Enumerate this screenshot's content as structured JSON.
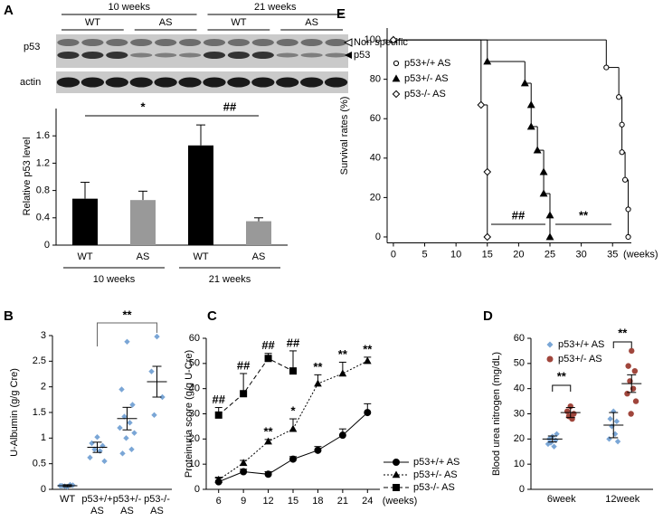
{
  "chart_data": [
    {
      "panel": "A",
      "type": "bar",
      "blot": {
        "groups": [
          "10 weeks",
          "21 weeks"
        ],
        "lanes": [
          "WT",
          "AS",
          "WT",
          "AS"
        ],
        "rows": [
          "p53",
          "actin"
        ],
        "markers": [
          "Non specific",
          "p53"
        ]
      },
      "ylabel": "Relative p53 level",
      "categories": [
        "WT",
        "AS",
        "WT",
        "AS"
      ],
      "groups": [
        "10 weeks",
        "21 weeks"
      ],
      "values": [
        0.68,
        0.66,
        1.46,
        0.35
      ],
      "errors": [
        0.24,
        0.13,
        0.3,
        0.05
      ],
      "colors": [
        "#000000",
        "#999999",
        "#000000",
        "#999999"
      ],
      "ylim": [
        0,
        2
      ],
      "yticks": [
        0,
        0.4,
        0.8,
        1.2,
        1.6
      ],
      "annotations": [
        "*",
        "##"
      ]
    },
    {
      "panel": "B",
      "type": "dotplot",
      "ylabel": "U-Albumin (g/g Cre)",
      "categories": [
        [
          "WT"
        ],
        [
          "p53+/+",
          "AS"
        ],
        [
          "p53+/-",
          "AS"
        ],
        [
          "p53-/-",
          "AS"
        ]
      ],
      "series": [
        {
          "color": "#7aa6d6",
          "marker": "diamond",
          "points": [
            [
              0.05,
              0.07,
              0.08,
              0.06,
              0.09,
              0.07
            ],
            [
              1.02,
              0.9,
              0.85,
              0.78,
              0.75,
              0.62,
              0.55
            ],
            [
              2.88,
              1.95,
              1.65,
              1.42,
              1.3,
              1.2,
              1.1,
              1.0,
              0.78,
              0.7
            ],
            [
              2.98,
              2.3,
              1.8,
              1.45
            ]
          ],
          "means": [
            0.07,
            0.82,
            1.38,
            2.1
          ],
          "sems": [
            0.02,
            0.1,
            0.22,
            0.3
          ]
        }
      ],
      "ylim": [
        0,
        3
      ],
      "yticks": [
        0,
        0.5,
        1,
        1.5,
        2,
        2.5,
        3
      ],
      "annotations": [
        "**"
      ]
    },
    {
      "panel": "C",
      "type": "line",
      "ylabel": "Proteinuria score (g/g U-Cre)",
      "xlabel": "(weeks)",
      "x": [
        6,
        9,
        12,
        15,
        18,
        21,
        24
      ],
      "xlim": [
        4.5,
        25.5
      ],
      "xticks": [
        6,
        9,
        12,
        15,
        18,
        21,
        24
      ],
      "ylim": [
        0,
        60
      ],
      "yticks": [
        0,
        10,
        20,
        30,
        40,
        50,
        60
      ],
      "series": [
        {
          "name": "p53+/+ AS",
          "color": "#000000",
          "marker": "circle",
          "dash": "solid",
          "values": [
            3.0,
            7,
            6,
            12,
            15.5,
            21.5,
            30.5
          ],
          "errors": [
            1.5,
            1,
            1,
            1,
            1.5,
            2.5,
            3.5
          ]
        },
        {
          "name": "p53+/- AS",
          "color": "#000000",
          "marker": "triangle",
          "dash": "dotted",
          "values": [
            3.8,
            10.5,
            19,
            24,
            42,
            46,
            51
          ],
          "errors": [
            1,
            1,
            0.8,
            4,
            3.5,
            4.5,
            1.5
          ]
        },
        {
          "name": "p53-/- AS",
          "color": "#000000",
          "marker": "square",
          "dash": "dashed",
          "values": [
            29.5,
            38,
            52,
            47,
            null,
            null,
            null
          ],
          "errors": [
            3,
            8,
            2,
            8,
            null,
            null,
            null
          ]
        }
      ],
      "annotations": [
        "##",
        "##",
        "##",
        "##",
        "**",
        "*",
        "**",
        "**",
        "**"
      ]
    },
    {
      "panel": "D",
      "type": "dotplot",
      "ylabel": "Blood urea nitrogen (mg/dL)",
      "categories": [
        [
          "6week"
        ],
        [
          "12week"
        ]
      ],
      "series": [
        {
          "name": "p53+/+ AS",
          "color": "#7aa6d6",
          "marker": "diamond",
          "points": [
            [
              21,
              20,
              19.5,
              18.5,
              17,
              18,
              22
            ],
            [
              31,
              28,
              27,
              25,
              22,
              20,
              19
            ]
          ],
          "means": [
            20,
            25.5
          ],
          "sems": [
            1.2,
            5
          ]
        },
        {
          "name": "p53+/- AS",
          "color": "#a0463c",
          "marker": "circle",
          "points": [
            [
              33,
              31,
              30,
              29,
              28
            ],
            [
              55,
              49,
              47,
              43,
              40,
              38,
              35,
              30
            ]
          ],
          "means": [
            30.5,
            42
          ],
          "sems": [
            2,
            3.5
          ]
        }
      ],
      "ylim": [
        0,
        60
      ],
      "yticks": [
        0,
        10,
        20,
        30,
        40,
        50,
        60
      ],
      "annotations": [
        "**",
        "**"
      ]
    },
    {
      "panel": "E",
      "type": "step",
      "ylabel": "Survival rates (%)",
      "xlabel": "(weeks)",
      "xlim": [
        -1,
        38
      ],
      "xticks": [
        0,
        5,
        10,
        15,
        20,
        25,
        30,
        35
      ],
      "ylim": [
        -3,
        106
      ],
      "yticks": [
        0,
        20,
        40,
        60,
        80,
        100
      ],
      "series": [
        {
          "name": "p53+/+ AS",
          "color": "#555555",
          "marker": "circle",
          "filled": false,
          "x": [
            0,
            34,
            36,
            36.5,
            36.5,
            37,
            37.5,
            37.5
          ],
          "values": [
            100,
            86,
            71,
            57,
            43,
            29,
            14,
            0
          ]
        },
        {
          "name": "p53+/- AS",
          "color": "#000000",
          "marker": "triangle",
          "filled": true,
          "x": [
            0,
            15,
            21,
            22,
            22,
            23,
            24,
            24,
            25,
            25
          ],
          "values": [
            100,
            89,
            78,
            67,
            56,
            44,
            33,
            22,
            11,
            0
          ]
        },
        {
          "name": "p53-/- AS",
          "color": "#999999",
          "marker": "diamond",
          "filled": false,
          "x": [
            0,
            14,
            15,
            15
          ],
          "values": [
            100,
            67,
            33,
            0
          ]
        }
      ],
      "annotations": [
        "##",
        "**"
      ]
    }
  ]
}
